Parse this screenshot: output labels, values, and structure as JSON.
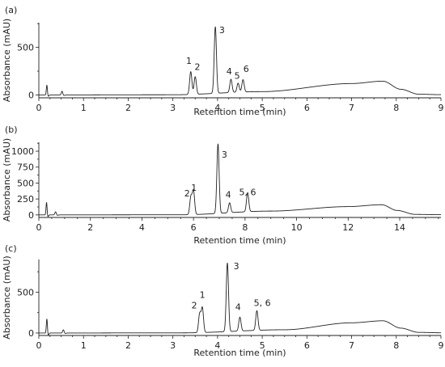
{
  "chart_data": [
    {
      "type": "line",
      "panel_label": "(a)",
      "xlabel": "Retention time (min)",
      "ylabel": "Absorbance (mAU)",
      "xlim": [
        0,
        9
      ],
      "ylim": [
        -30,
        760
      ],
      "x_ticks": [
        0,
        1,
        2,
        3,
        4,
        5,
        6,
        7,
        8,
        9
      ],
      "y_ticks": [
        0,
        500
      ],
      "baseline": {
        "x": [
          0,
          3,
          5,
          7,
          7.7,
          8.1,
          8.5,
          9
        ],
        "y": [
          0,
          2,
          35,
          120,
          145,
          60,
          8,
          3
        ]
      },
      "disturbances": [
        {
          "x": 0.18,
          "height": 105,
          "width": 0.03
        },
        {
          "x": 0.52,
          "height": 40,
          "width": 0.04
        }
      ],
      "peaks": [
        {
          "label": "1",
          "x": 3.4,
          "height": 240
        },
        {
          "label": "2",
          "x": 3.5,
          "height": 185
        },
        {
          "label": "3",
          "x": 3.95,
          "height": 700
        },
        {
          "label": "4",
          "x": 4.3,
          "height": 140
        },
        {
          "label": "5",
          "x": 4.46,
          "height": 95
        },
        {
          "label": "6",
          "x": 4.57,
          "height": 130
        }
      ],
      "peak_labels": [
        {
          "text": "1",
          "x": 3.36,
          "y": 325
        },
        {
          "text": "2",
          "x": 3.55,
          "y": 265
        },
        {
          "text": "3",
          "x": 4.1,
          "y": 650
        },
        {
          "text": "4",
          "x": 4.26,
          "y": 215
        },
        {
          "text": "5",
          "x": 4.44,
          "y": 170
        },
        {
          "text": "6",
          "x": 4.64,
          "y": 240
        }
      ]
    },
    {
      "type": "line",
      "panel_label": "(b)",
      "xlabel": "Retention time (min)",
      "ylabel": "Absorbance (mAU)",
      "xlim": [
        0,
        15.6
      ],
      "ylim": [
        -40,
        1140
      ],
      "x_ticks": [
        0,
        2,
        4,
        6,
        8,
        10,
        12,
        14
      ],
      "y_ticks": [
        0,
        250,
        500,
        750,
        1000
      ],
      "baseline": {
        "x": [
          0,
          5.5,
          9,
          12,
          13.3,
          13.9,
          14.6,
          15.6
        ],
        "y": [
          0,
          2,
          60,
          130,
          160,
          70,
          8,
          3
        ]
      },
      "disturbances": [
        {
          "x": 0.3,
          "height": 200,
          "width": 0.05
        },
        {
          "x": 0.65,
          "height": 50,
          "width": 0.07
        }
      ],
      "peaks": [
        {
          "label": "2",
          "x": 5.9,
          "height": 280
        },
        {
          "label": "1",
          "x": 6.0,
          "height": 370
        },
        {
          "label": "3",
          "x": 6.95,
          "height": 1090
        },
        {
          "label": "4",
          "x": 7.4,
          "height": 155
        },
        {
          "label": "5, 6",
          "x": 8.1,
          "height": 300
        }
      ],
      "peak_labels": [
        {
          "text": "2",
          "x": 5.75,
          "y": 290
        },
        {
          "text": "1",
          "x": 6.02,
          "y": 380
        },
        {
          "text": "3",
          "x": 7.2,
          "y": 900
        },
        {
          "text": "4",
          "x": 7.35,
          "y": 270
        },
        {
          "text": "5, 6",
          "x": 8.1,
          "y": 310
        }
      ]
    },
    {
      "type": "line",
      "panel_label": "(c)",
      "xlabel": "Retention time (min)",
      "ylabel": "Absorbance (mAU)",
      "xlim": [
        0,
        9
      ],
      "ylim": [
        -30,
        900
      ],
      "x_ticks": [
        0,
        1,
        2,
        3,
        4,
        5,
        6,
        7,
        8,
        9
      ],
      "y_ticks": [
        0,
        500
      ],
      "baseline": {
        "x": [
          0,
          3.2,
          5.5,
          7,
          7.7,
          8.1,
          8.5,
          9
        ],
        "y": [
          0,
          2,
          40,
          125,
          150,
          60,
          8,
          3
        ]
      },
      "disturbances": [
        {
          "x": 0.18,
          "height": 175,
          "width": 0.03
        },
        {
          "x": 0.55,
          "height": 40,
          "width": 0.04
        }
      ],
      "peaks": [
        {
          "label": "2",
          "x": 3.6,
          "height": 230
        },
        {
          "label": "1",
          "x": 3.66,
          "height": 300
        },
        {
          "label": "3",
          "x": 4.22,
          "height": 840
        },
        {
          "label": "4",
          "x": 4.5,
          "height": 170
        },
        {
          "label": "5, 6",
          "x": 4.88,
          "height": 240
        }
      ],
      "peak_labels": [
        {
          "text": "2",
          "x": 3.48,
          "y": 300
        },
        {
          "text": "1",
          "x": 3.66,
          "y": 430
        },
        {
          "text": "3",
          "x": 4.42,
          "y": 780
        },
        {
          "text": "4",
          "x": 4.46,
          "y": 280
        },
        {
          "text": "5, 6",
          "x": 5.0,
          "y": 330
        }
      ]
    }
  ]
}
